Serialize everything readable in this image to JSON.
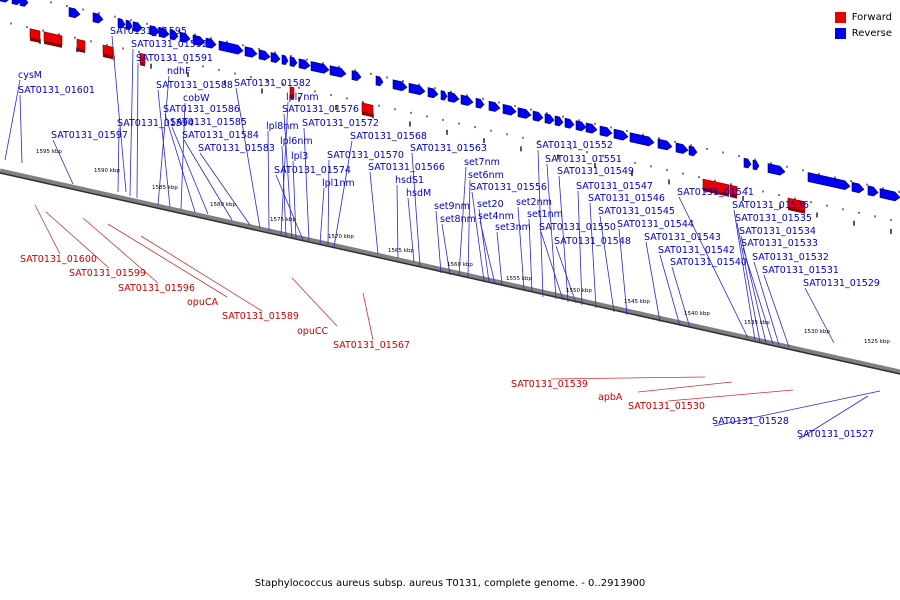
{
  "legend": {
    "forward": "Forward",
    "reverse": "Reverse"
  },
  "colors": {
    "forward": "#e60000",
    "reverse": "#0000ee",
    "forward_label": "#cc0000",
    "reverse_label": "#0000cc"
  },
  "footer": "Staphylococcus aureus subsp. aureus T0131, complete genome. - 0..2913900",
  "scale_ticks": [
    "1595 kbp",
    "1590 kbp",
    "1585 kbp",
    "1580 kbp",
    "1575 kbp",
    "1570 kbp",
    "1565 kbp",
    "1560 kbp",
    "1555 kbp",
    "1550 kbp",
    "1545 kbp",
    "1540 kbp",
    "1535 kbp",
    "1530 kbp",
    "1525 kbp"
  ],
  "reverse_labels": [
    "cysM",
    "SAT0131_01601",
    "SAT0131_01595",
    "SAT0131_01592",
    "SAT0131_01591",
    "ndhF",
    "SAT0131_01588",
    "cobW",
    "SAT0131_01586",
    "SAT0131_01585",
    "SAT0131_01584",
    "SAT0131_01583",
    "SAT0131_01594",
    "SAT0131_01597",
    "SAT0131_01582",
    "lpl7nm",
    "SAT0131_01576",
    "SAT0131_01572",
    "lpl8nm",
    "lpl6nm",
    "lpl3",
    "SAT0131_01574",
    "lpl1nm",
    "SAT0131_01568",
    "SAT0131_01570",
    "SAT0131_01566",
    "hsdS1",
    "hsdM",
    "SAT0131_01563",
    "set7nm",
    "set6nm",
    "SAT0131_01556",
    "set9nm",
    "set8nm",
    "set20",
    "set4nm",
    "set3nm",
    "set2nm",
    "set1nm",
    "SAT0131_01552",
    "SAT0131_01551",
    "SAT0131_01549",
    "SAT0131_01547",
    "SAT0131_01546",
    "SAT0131_01545",
    "SAT0131_01544",
    "SAT0131_01550",
    "SAT0131_01548",
    "SAT0131_01543",
    "SAT0131_01542",
    "SAT0131_01540",
    "SAT0131_01541",
    "SAT0131_01536",
    "SAT0131_01535",
    "SAT0131_01534",
    "SAT0131_01533",
    "SAT0131_01532",
    "SAT0131_01531",
    "SAT0131_01529",
    "SAT0131_01528",
    "SAT0131_01527"
  ],
  "forward_labels": [
    "SAT0131_01600",
    "SAT0131_01599",
    "SAT0131_01596",
    "opuCA",
    "SAT0131_01589",
    "opuCC",
    "SAT0131_01567",
    "SAT0131_01539",
    "apbA",
    "SAT0131_01530"
  ]
}
